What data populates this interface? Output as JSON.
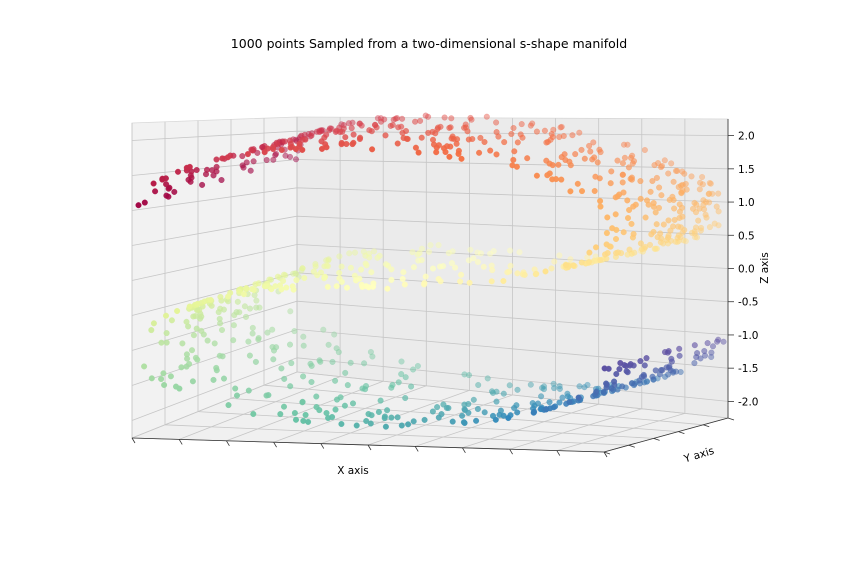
{
  "chart_data": {
    "type": "scatter",
    "title": "1000 points Sampled from a two-dimensional s-shape manifold",
    "xlabel": "X axis",
    "ylabel": "Y axis",
    "zlabel": "Z axis",
    "zlim": [
      -2.25,
      2.25
    ],
    "zticks": [
      "2.0",
      "1.5",
      "1.0",
      "0.5",
      "0.0",
      "-0.5",
      "-1.0",
      "-1.5",
      "-2.0"
    ],
    "grid": true,
    "colormap": "Spectral",
    "n_points": 1000,
    "points": [
      {
        "x": -0.95,
        "y": 1.2,
        "z": -1.3
      },
      {
        "x": -0.8,
        "y": 0.6,
        "z": -1.6
      },
      {
        "x": -0.6,
        "y": 1.5,
        "z": -1.8
      },
      {
        "x": -0.3,
        "y": 0.4,
        "z": -1.95
      },
      {
        "x": 0.0,
        "y": 1.1,
        "z": -2.0
      },
      {
        "x": 0.3,
        "y": 1.8,
        "z": -1.95
      },
      {
        "x": 0.6,
        "y": 0.7,
        "z": -1.8
      },
      {
        "x": 0.85,
        "y": 1.4,
        "z": -1.5
      },
      {
        "x": 0.98,
        "y": 0.9,
        "z": -1.2
      },
      {
        "x": 0.95,
        "y": 0.3,
        "z": -0.7
      },
      {
        "x": 0.7,
        "y": 1.6,
        "z": -0.3
      },
      {
        "x": 0.3,
        "y": 1.0,
        "z": -0.05
      },
      {
        "x": -0.1,
        "y": 0.5,
        "z": 0.1
      },
      {
        "x": -0.5,
        "y": 1.7,
        "z": 0.3
      },
      {
        "x": -0.85,
        "y": 1.2,
        "z": 0.5
      },
      {
        "x": -0.98,
        "y": 0.4,
        "z": 1.0
      },
      {
        "x": -0.8,
        "y": 1.9,
        "z": 1.5
      },
      {
        "x": -0.5,
        "y": 0.8,
        "z": 1.8
      },
      {
        "x": -0.1,
        "y": 1.3,
        "z": 2.0
      },
      {
        "x": 0.3,
        "y": 0.2,
        "z": 1.95
      },
      {
        "x": 0.6,
        "y": 1.5,
        "z": 1.8
      },
      {
        "x": 0.85,
        "y": 0.9,
        "z": 1.5
      },
      {
        "x": 0.98,
        "y": 1.7,
        "z": 1.1
      }
    ]
  }
}
